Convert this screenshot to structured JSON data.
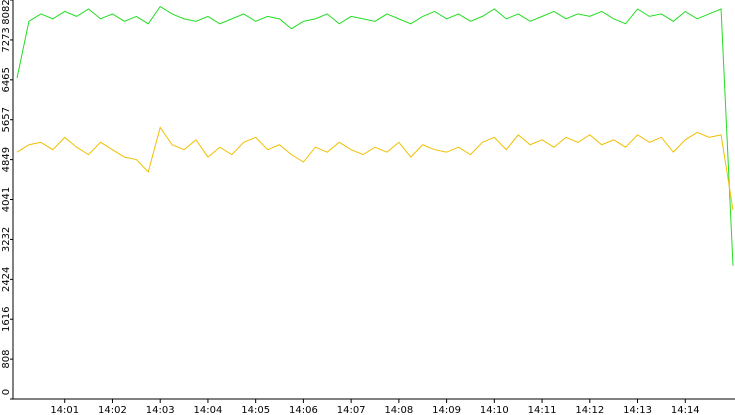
{
  "chart_data": {
    "type": "line",
    "x": [
      0,
      15,
      30,
      45,
      60,
      75,
      90,
      105,
      120,
      135,
      150,
      165,
      180,
      195,
      210,
      225,
      240,
      255,
      270,
      285,
      300,
      315,
      330,
      345,
      360,
      375,
      390,
      405,
      420,
      435,
      450,
      465,
      480,
      495,
      510,
      525,
      540,
      555,
      570,
      585,
      600,
      615,
      630,
      645,
      660,
      675,
      690,
      705,
      720,
      735,
      750,
      765,
      780,
      795,
      810,
      825,
      840,
      855,
      870,
      885,
      900
    ],
    "series": [
      {
        "color": "#22dd22",
        "values": [
          6500,
          7650,
          7800,
          7700,
          7850,
          7750,
          7900,
          7700,
          7800,
          7650,
          7750,
          7600,
          7950,
          7800,
          7700,
          7650,
          7750,
          7600,
          7700,
          7800,
          7650,
          7750,
          7700,
          7500,
          7650,
          7700,
          7800,
          7600,
          7750,
          7700,
          7650,
          7800,
          7700,
          7600,
          7750,
          7850,
          7700,
          7800,
          7650,
          7750,
          7900,
          7700,
          7800,
          7650,
          7750,
          7850,
          7700,
          7800,
          7750,
          7850,
          7700,
          7600,
          7900,
          7750,
          7800,
          7650,
          7850,
          7700,
          7800,
          7900,
          2700
        ]
      },
      {
        "color": "#f0c000",
        "values": [
          5000,
          5150,
          5200,
          5050,
          5300,
          5100,
          4950,
          5200,
          5050,
          4900,
          4850,
          4600,
          5500,
          5150,
          5050,
          5250,
          4900,
          5100,
          4950,
          5200,
          5300,
          5050,
          5150,
          4950,
          4800,
          5100,
          5000,
          5200,
          5050,
          4950,
          5100,
          5000,
          5200,
          4900,
          5150,
          5050,
          5000,
          5100,
          4950,
          5200,
          5300,
          5050,
          5350,
          5150,
          5250,
          5100,
          5300,
          5200,
          5350,
          5150,
          5250,
          5100,
          5350,
          5200,
          5300,
          5000,
          5250,
          5400,
          5300,
          5350,
          3830
        ]
      }
    ],
    "xlim": [
      0,
      900
    ],
    "xticks": [
      {
        "value": 60,
        "label": "14:01"
      },
      {
        "value": 120,
        "label": "14:02"
      },
      {
        "value": 180,
        "label": "14:03"
      },
      {
        "value": 240,
        "label": "14:04"
      },
      {
        "value": 300,
        "label": "14:05"
      },
      {
        "value": 360,
        "label": "14:06"
      },
      {
        "value": 420,
        "label": "14:07"
      },
      {
        "value": 480,
        "label": "14:08"
      },
      {
        "value": 540,
        "label": "14:09"
      },
      {
        "value": 600,
        "label": "14:10"
      },
      {
        "value": 660,
        "label": "14:11"
      },
      {
        "value": 720,
        "label": "14:12"
      },
      {
        "value": 780,
        "label": "14:13"
      },
      {
        "value": 840,
        "label": "14:14"
      }
    ],
    "ylim": [
      0,
      8082
    ],
    "yticks": [
      0,
      808,
      1616,
      2424,
      3232,
      4041,
      4849,
      5657,
      6465,
      7273,
      8082
    ]
  }
}
